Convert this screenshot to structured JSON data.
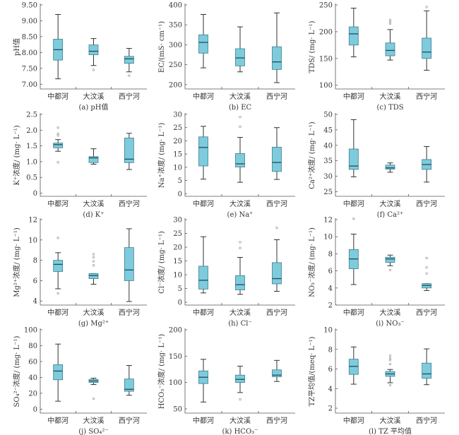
{
  "chart_data": {
    "type": "box",
    "categories": [
      "中都河",
      "大汶溪",
      "西宁河"
    ],
    "colors": {
      "box_fill": "#7ecbdd",
      "box_stroke": "#3c7f8e",
      "whisker": "#333333",
      "outlier": "#999999",
      "axis": "#555555"
    },
    "panels": [
      {
        "caption": "(a) pH值",
        "ylabel": "pH值",
        "ylim": [
          6.85,
          9.5
        ],
        "ticks": [
          7,
          7.5,
          8,
          8.5,
          9,
          9.5
        ],
        "tick_labels": [
          "7.00",
          "7.50",
          "8.00",
          "8.50",
          "9.00",
          "9.50"
        ],
        "boxes": [
          {
            "min": 7.17,
            "q1": 7.76,
            "median": 8.09,
            "q3": 8.42,
            "max": 9.2,
            "outliers": []
          },
          {
            "min": 7.59,
            "q1": 7.93,
            "median": 8.04,
            "q3": 8.24,
            "max": 8.44,
            "outliers": [
              7.45
            ]
          },
          {
            "min": 7.39,
            "q1": 7.66,
            "median": 7.8,
            "q3": 7.88,
            "max": 8.13,
            "outliers": [
              7.27
            ]
          }
        ]
      },
      {
        "caption": "(b) EC",
        "ylabel": "EC/(mS· cm⁻¹)",
        "ylim": [
          189,
          400
        ],
        "ticks": [
          200,
          250,
          300,
          350,
          400
        ],
        "tick_labels": [
          "200",
          "250",
          "300",
          "350",
          "400"
        ],
        "boxes": [
          {
            "min": 242,
            "q1": 279,
            "median": 306,
            "q3": 325,
            "max": 376,
            "outliers": []
          },
          {
            "min": 232,
            "q1": 247,
            "median": 267,
            "q3": 290,
            "max": 345,
            "outliers": []
          },
          {
            "min": 205,
            "q1": 238,
            "median": 257,
            "q3": 295,
            "max": 380,
            "outliers": []
          }
        ]
      },
      {
        "caption": "(c) TDS",
        "ylabel": "TDS/ (mg· L⁻¹)",
        "ylim": [
          93,
          250
        ],
        "ticks": [
          100,
          150,
          200,
          250
        ],
        "tick_labels": [
          "100",
          "150",
          "200",
          "250"
        ],
        "boxes": [
          {
            "min": 153,
            "q1": 175,
            "median": 196,
            "q3": 209,
            "max": 244,
            "outliers": []
          },
          {
            "min": 147,
            "q1": 155,
            "median": 165,
            "q3": 179,
            "max": 204,
            "outliers": [
              215,
              219,
              222
            ]
          },
          {
            "min": 128,
            "q1": 150,
            "median": 162,
            "q3": 188,
            "max": 239,
            "outliers": [
              246
            ]
          }
        ]
      },
      {
        "caption": "(d) K⁺",
        "ylabel": "K⁺浓度/ (mg· L⁻¹)",
        "ylim": [
          -0.1,
          2.5
        ],
        "ticks": [
          0,
          0.5,
          1,
          1.5,
          2,
          2.5
        ],
        "tick_labels": [
          "0",
          "0.5",
          "1.0",
          "1.5",
          "2.0",
          "2.5"
        ],
        "boxes": [
          {
            "min": 1.33,
            "q1": 1.44,
            "median": 1.54,
            "q3": 1.59,
            "max": 1.7,
            "outliers": [
              0.98,
              1.83,
              1.89,
              2.08
            ]
          },
          {
            "min": 0.92,
            "q1": 0.97,
            "median": 1.12,
            "q3": 1.16,
            "max": 1.41,
            "outliers": []
          },
          {
            "min": 0.75,
            "q1": 0.97,
            "median": 1.08,
            "q3": 1.75,
            "max": 1.9,
            "outliers": []
          }
        ]
      },
      {
        "caption": "(e) Na⁺",
        "ylabel": "Na⁺浓度/ (mg· L⁻¹)",
        "ylim": [
          -1,
          30
        ],
        "ticks": [
          0,
          5,
          10,
          15,
          20,
          25,
          30
        ],
        "tick_labels": [
          "0",
          "5",
          "10",
          "15",
          "20",
          "25",
          "30"
        ],
        "boxes": [
          {
            "min": 5.5,
            "q1": 10.5,
            "median": 17.5,
            "q3": 21.5,
            "max": 25.5,
            "outliers": []
          },
          {
            "min": 4.3,
            "q1": 10.1,
            "median": 11.3,
            "q3": 15.2,
            "max": 21.3,
            "outliers": [
              25.3,
              29
            ]
          },
          {
            "min": 5.4,
            "q1": 8.4,
            "median": 11.8,
            "q3": 17.6,
            "max": 25,
            "outliers": []
          }
        ]
      },
      {
        "caption": "(f) Ca²⁺",
        "ylabel": "Ca²⁺浓度/ (mg· L⁻¹)",
        "ylim": [
          23.5,
          50
        ],
        "ticks": [
          25,
          30,
          35,
          40,
          45,
          50
        ],
        "tick_labels": [
          "25",
          "30",
          "35",
          "40",
          "45",
          "50"
        ],
        "boxes": [
          {
            "min": 29.8,
            "q1": 32.2,
            "median": 33.3,
            "q3": 38.8,
            "max": 48.3,
            "outliers": []
          },
          {
            "min": 31.3,
            "q1": 32.3,
            "median": 32.7,
            "q3": 33.6,
            "max": 34.3,
            "outliers": []
          },
          {
            "min": 28.1,
            "q1": 32.2,
            "median": 33.8,
            "q3": 35.4,
            "max": 39.6,
            "outliers": []
          }
        ]
      },
      {
        "caption": "(g) Mg²⁺",
        "ylabel": "Mg²⁺浓度/ (mg· L⁻¹)",
        "ylim": [
          3.6,
          12
        ],
        "ticks": [
          4,
          6,
          8,
          10,
          12
        ],
        "tick_labels": [
          "4",
          "6",
          "8",
          "10",
          "12"
        ],
        "boxes": [
          {
            "min": 5.2,
            "q1": 6.9,
            "median": 7.6,
            "q3": 8.0,
            "max": 8.75,
            "outliers": [
              4.75,
              10.2
            ]
          },
          {
            "min": 5.65,
            "q1": 6.2,
            "median": 6.5,
            "q3": 6.7,
            "max": 6.7,
            "outliers": [
              7.5,
              7.9,
              8.3,
              8.6
            ]
          },
          {
            "min": 3.95,
            "q1": 6.0,
            "median": 7.05,
            "q3": 9.25,
            "max": 11.1,
            "outliers": []
          }
        ]
      },
      {
        "caption": "(h) Cl⁻",
        "ylabel": "Cl⁻浓度/ (mg· L⁻¹)",
        "ylim": [
          -1,
          30
        ],
        "ticks": [
          0,
          5,
          10,
          15,
          20,
          25,
          30
        ],
        "tick_labels": [
          "0",
          "5",
          "10",
          "15",
          "20",
          "25",
          "30"
        ],
        "boxes": [
          {
            "min": 3.4,
            "q1": 4.8,
            "median": 8.0,
            "q3": 13.1,
            "max": 23.8,
            "outliers": []
          },
          {
            "min": 2.9,
            "q1": 4.5,
            "median": 6.4,
            "q3": 9.7,
            "max": 16.3,
            "outliers": [
              19.7,
              21.8
            ]
          },
          {
            "min": 4.0,
            "q1": 6.7,
            "median": 8.6,
            "q3": 14.4,
            "max": 22.7,
            "outliers": [
              27
            ]
          }
        ]
      },
      {
        "caption": "(i) NO₃⁻",
        "ylabel": "NO₃⁻浓度/ (mg· L⁻¹)",
        "ylim": [
          2,
          12
        ],
        "ticks": [
          2,
          4,
          6,
          8,
          10,
          12
        ],
        "tick_labels": [
          "2",
          "4",
          "6",
          "8",
          "10",
          "12"
        ],
        "boxes": [
          {
            "min": 4.4,
            "q1": 6.25,
            "median": 7.4,
            "q3": 8.5,
            "max": 10.3,
            "outliers": [
              12.1
            ]
          },
          {
            "min": 6.6,
            "q1": 7.0,
            "median": 7.4,
            "q3": 7.6,
            "max": 7.85,
            "outliers": [
              6.1
            ]
          },
          {
            "min": 3.7,
            "q1": 4.0,
            "median": 4.3,
            "q3": 4.5,
            "max": 4.5,
            "outliers": [
              5.7,
              6.4,
              7.5
            ]
          }
        ]
      },
      {
        "caption": "(j) SO₄²⁻",
        "ylabel": "SO₄²⁻浓度/ (mg· L⁻¹)",
        "ylim": [
          -5,
          100
        ],
        "ticks": [
          0,
          20,
          40,
          60,
          80,
          100
        ],
        "tick_labels": [
          "0",
          "20",
          "40",
          "60",
          "80",
          "100"
        ],
        "boxes": [
          {
            "min": 10,
            "q1": 37,
            "median": 48,
            "q3": 56,
            "max": 82,
            "outliers": []
          },
          {
            "min": 31,
            "q1": 33.5,
            "median": 35.5,
            "q3": 37.5,
            "max": 39,
            "outliers": [
              13
            ]
          },
          {
            "min": 17.5,
            "q1": 22.5,
            "median": 25,
            "q3": 38,
            "max": 55,
            "outliers": []
          }
        ]
      },
      {
        "caption": "(k) HCO₃⁻",
        "ylabel": "HCO₃⁻浓度/ (mg· L⁻¹)",
        "ylim": [
          42,
          200
        ],
        "ticks": [
          50,
          100,
          150,
          200
        ],
        "tick_labels": [
          "50",
          "100",
          "150",
          "200"
        ],
        "boxes": [
          {
            "min": 63,
            "q1": 98,
            "median": 110,
            "q3": 122,
            "max": 144,
            "outliers": []
          },
          {
            "min": 81,
            "q1": 100,
            "median": 106,
            "q3": 114,
            "max": 131,
            "outliers": [
              68
            ]
          },
          {
            "min": 102,
            "q1": 111,
            "median": 114,
            "q3": 124,
            "max": 142,
            "outliers": []
          }
        ]
      },
      {
        "caption": "(l) TZ 平均值",
        "ylabel": "TZ平均值/(meq· L⁻¹)",
        "ylim": [
          1.5,
          10
        ],
        "ticks": [
          2,
          4,
          6,
          8,
          10
        ],
        "tick_labels": [
          "2",
          "4",
          "6",
          "8",
          "10"
        ],
        "boxes": [
          {
            "min": 4.45,
            "q1": 5.45,
            "median": 6.27,
            "q3": 7.0,
            "max": 8.25,
            "outliers": []
          },
          {
            "min": 4.6,
            "q1": 5.25,
            "median": 5.5,
            "q3": 5.75,
            "max": 5.95,
            "outliers": [
              4.35,
              6.5,
              6.9,
              7.1,
              7.35
            ]
          },
          {
            "min": 4.4,
            "q1": 5.05,
            "median": 5.5,
            "q3": 6.6,
            "max": 8.05,
            "outliers": []
          }
        ]
      }
    ]
  }
}
